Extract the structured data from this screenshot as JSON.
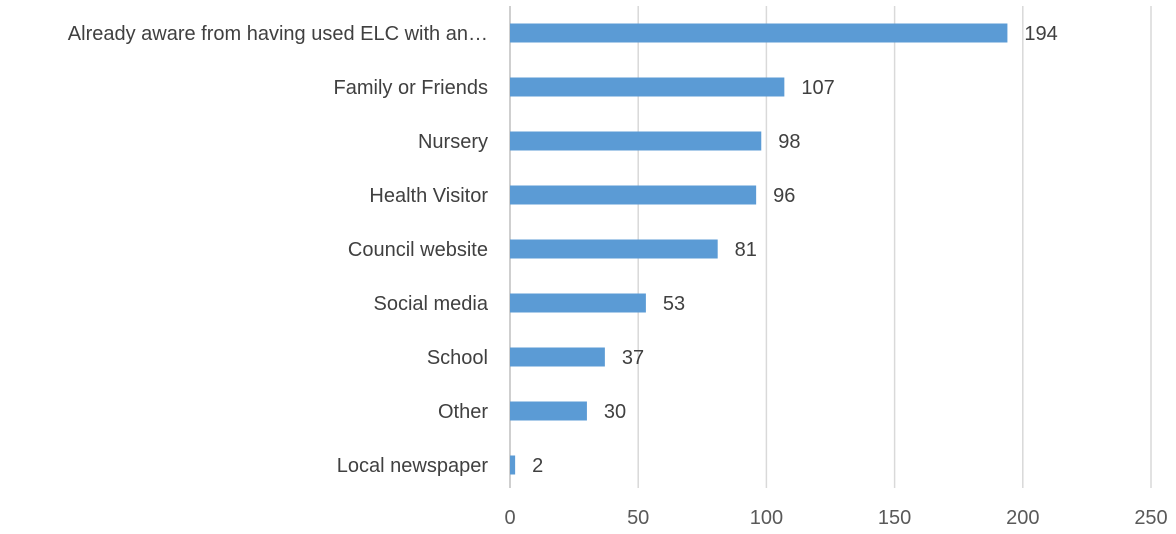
{
  "chart_data": {
    "type": "bar",
    "orientation": "horizontal",
    "categories": [
      "Already aware from having used ELC with an…",
      "Family or Friends",
      "Nursery",
      "Health Visitor",
      "Council website",
      "Social media",
      "School",
      "Other",
      "Local newspaper"
    ],
    "values": [
      194,
      107,
      98,
      96,
      81,
      53,
      37,
      30,
      2
    ],
    "title": "",
    "xlabel": "",
    "ylabel": "",
    "xlim": [
      0,
      250
    ],
    "xticks": [
      0,
      50,
      100,
      150,
      200,
      250
    ],
    "grid": "vertical",
    "legend": "none",
    "data_labels": true,
    "bar_color": "#5b9bd5"
  }
}
